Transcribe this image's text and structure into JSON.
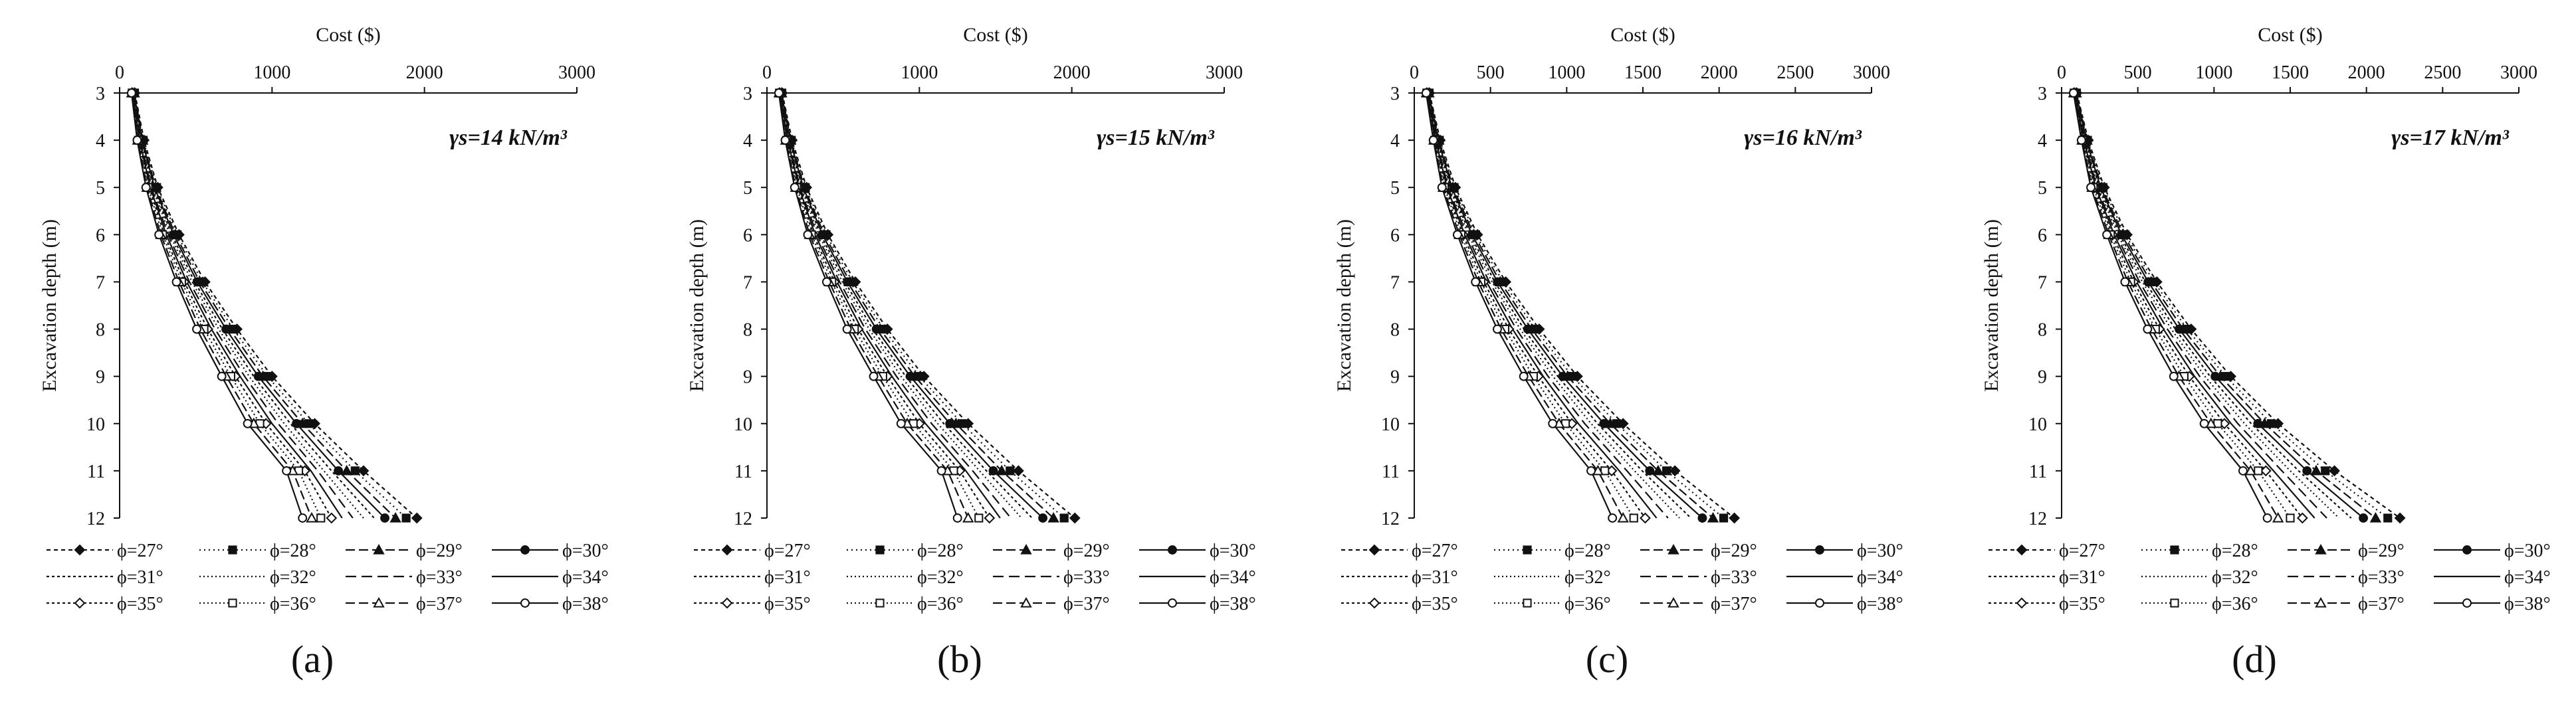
{
  "colors": {
    "ink": "#111111",
    "grid": "#999999",
    "background": "#ffffff"
  },
  "shared": {
    "x_axis_label": "Cost ($)",
    "y_axis_label": "Excavation depth (m)",
    "unit_weight_prefix": "γs="
  },
  "legend_items": [
    {
      "label": "ϕ=27°",
      "dash": "6,5",
      "marker": "diamond-filled"
    },
    {
      "label": "ϕ=28°",
      "dash": "2,5",
      "marker": "square-filled"
    },
    {
      "label": "ϕ=29°",
      "dash": "14,6",
      "marker": "triangle-filled"
    },
    {
      "label": "ϕ=30°",
      "dash": "none",
      "marker": "circle-filled"
    },
    {
      "label": "ϕ=31°",
      "dash": "4,4",
      "marker": "none"
    },
    {
      "label": "ϕ=32°",
      "dash": "2,4",
      "marker": "none"
    },
    {
      "label": "ϕ=33°",
      "dash": "16,8",
      "marker": "none"
    },
    {
      "label": "ϕ=34°",
      "dash": "none",
      "marker": "none"
    },
    {
      "label": "ϕ=35°",
      "dash": "4,4",
      "marker": "diamond-open"
    },
    {
      "label": "ϕ=36°",
      "dash": "2,4",
      "marker": "square-open"
    },
    {
      "label": "ϕ=37°",
      "dash": "14,6",
      "marker": "triangle-open"
    },
    {
      "label": "ϕ=38°",
      "dash": "none",
      "marker": "circle-open"
    }
  ],
  "chart_data": [
    {
      "type": "line",
      "panel_label": "(a)",
      "annotation": "γs=14 kN/m³",
      "xlabel": "Cost ($)",
      "ylabel": "Excavation depth (m)",
      "x_ticks": [
        0,
        1000,
        2000,
        3000
      ],
      "xlim": [
        0,
        3000
      ],
      "ylim": [
        3,
        12
      ],
      "y_ticks": [
        3,
        4,
        5,
        6,
        7,
        8,
        9,
        10,
        11,
        12
      ],
      "y_reversed": true,
      "depths": [
        3,
        4,
        5,
        6,
        7,
        8,
        9,
        10,
        11,
        12
      ],
      "series": [
        {
          "name": "ϕ=27°",
          "values": [
            100,
            160,
            250,
            390,
            560,
            770,
            1000,
            1280,
            1600,
            1950
          ]
        },
        {
          "name": "ϕ=28°",
          "values": [
            98,
            155,
            243,
            378,
            543,
            746,
            970,
            1240,
            1545,
            1880
          ]
        },
        {
          "name": "ϕ=29°",
          "values": [
            96,
            151,
            236,
            366,
            526,
            722,
            940,
            1200,
            1490,
            1810
          ]
        },
        {
          "name": "ϕ=30°",
          "values": [
            94,
            147,
            229,
            354,
            509,
            698,
            910,
            1160,
            1435,
            1740
          ]
        },
        {
          "name": "ϕ=31°",
          "values": [
            92,
            143,
            222,
            342,
            492,
            674,
            880,
            1120,
            1390,
            1670
          ]
        },
        {
          "name": "ϕ=32°",
          "values": [
            90,
            139,
            215,
            330,
            475,
            650,
            850,
            1080,
            1340,
            1600
          ]
        },
        {
          "name": "ϕ=33°",
          "values": [
            88,
            135,
            208,
            318,
            458,
            626,
            820,
            1040,
            1300,
            1530
          ]
        },
        {
          "name": "ϕ=34°",
          "values": [
            86,
            131,
            201,
            306,
            441,
            602,
            790,
            1000,
            1255,
            1460
          ]
        },
        {
          "name": "ϕ=35°",
          "values": [
            84,
            127,
            194,
            294,
            424,
            578,
            760,
            960,
            1215,
            1390
          ]
        },
        {
          "name": "ϕ=36°",
          "values": [
            82,
            123,
            187,
            282,
            407,
            554,
            730,
            920,
            1175,
            1320
          ]
        },
        {
          "name": "ϕ=37°",
          "values": [
            80,
            119,
            180,
            270,
            390,
            530,
            700,
            880,
            1135,
            1260
          ]
        },
        {
          "name": "ϕ=38°",
          "values": [
            78,
            115,
            173,
            258,
            373,
            506,
            670,
            840,
            1095,
            1200
          ]
        }
      ]
    },
    {
      "type": "line",
      "panel_label": "(b)",
      "annotation": "γs=15 kN/m³",
      "xlabel": "Cost ($)",
      "ylabel": "Excavation depth (m)",
      "x_ticks": [
        0,
        1000,
        2000,
        3000
      ],
      "xlim": [
        0,
        3000
      ],
      "ylim": [
        3,
        12
      ],
      "y_ticks": [
        3,
        4,
        5,
        6,
        7,
        8,
        9,
        10,
        11,
        12
      ],
      "y_reversed": true,
      "depths": [
        3,
        4,
        5,
        6,
        7,
        8,
        9,
        10,
        11,
        12
      ],
      "series": [
        {
          "name": "ϕ=27°",
          "values": [
            100,
            165,
            260,
            400,
            580,
            790,
            1030,
            1320,
            1650,
            2020
          ]
        },
        {
          "name": "ϕ=28°",
          "values": [
            98,
            160,
            252,
            388,
            562,
            766,
            1000,
            1280,
            1595,
            1950
          ]
        },
        {
          "name": "ϕ=29°",
          "values": [
            96,
            156,
            245,
            376,
            545,
            742,
            970,
            1240,
            1540,
            1880
          ]
        },
        {
          "name": "ϕ=30°",
          "values": [
            94,
            152,
            238,
            364,
            528,
            718,
            940,
            1200,
            1485,
            1810
          ]
        },
        {
          "name": "ϕ=31°",
          "values": [
            92,
            148,
            231,
            352,
            511,
            694,
            910,
            1160,
            1440,
            1740
          ]
        },
        {
          "name": "ϕ=32°",
          "values": [
            90,
            144,
            224,
            340,
            494,
            670,
            880,
            1120,
            1395,
            1670
          ]
        },
        {
          "name": "ϕ=33°",
          "values": [
            88,
            140,
            217,
            328,
            477,
            646,
            850,
            1080,
            1350,
            1600
          ]
        },
        {
          "name": "ϕ=34°",
          "values": [
            86,
            136,
            210,
            316,
            460,
            622,
            820,
            1040,
            1305,
            1530
          ]
        },
        {
          "name": "ϕ=35°",
          "values": [
            84,
            132,
            203,
            304,
            443,
            598,
            790,
            1000,
            1265,
            1460
          ]
        },
        {
          "name": "ϕ=36°",
          "values": [
            82,
            128,
            196,
            292,
            426,
            574,
            760,
            960,
            1225,
            1390
          ]
        },
        {
          "name": "ϕ=37°",
          "values": [
            80,
            124,
            189,
            280,
            409,
            550,
            730,
            920,
            1185,
            1320
          ]
        },
        {
          "name": "ϕ=38°",
          "values": [
            78,
            120,
            182,
            268,
            392,
            526,
            700,
            880,
            1145,
            1250
          ]
        }
      ]
    },
    {
      "type": "line",
      "panel_label": "(c)",
      "annotation": "γs=16 kN/m³",
      "xlabel": "Cost ($)",
      "ylabel": "Excavation depth (m)",
      "x_ticks": [
        0,
        500,
        1000,
        1500,
        2000,
        2500,
        3000
      ],
      "xlim": [
        0,
        3000
      ],
      "ylim": [
        3,
        12
      ],
      "y_ticks": [
        3,
        4,
        5,
        6,
        7,
        8,
        9,
        10,
        11,
        12
      ],
      "y_reversed": true,
      "depths": [
        3,
        4,
        5,
        6,
        7,
        8,
        9,
        10,
        11,
        12
      ],
      "series": [
        {
          "name": "ϕ=27°",
          "values": [
            100,
            170,
            270,
            415,
            600,
            820,
            1070,
            1370,
            1710,
            2100
          ]
        },
        {
          "name": "ϕ=28°",
          "values": [
            98,
            165,
            262,
            403,
            582,
            795,
            1038,
            1328,
            1655,
            2030
          ]
        },
        {
          "name": "ϕ=29°",
          "values": [
            96,
            161,
            254,
            391,
            564,
            770,
            1006,
            1286,
            1600,
            1960
          ]
        },
        {
          "name": "ϕ=30°",
          "values": [
            94,
            157,
            246,
            379,
            546,
            745,
            974,
            1244,
            1545,
            1890
          ]
        },
        {
          "name": "ϕ=31°",
          "values": [
            92,
            153,
            238,
            367,
            528,
            720,
            942,
            1202,
            1495,
            1815
          ]
        },
        {
          "name": "ϕ=32°",
          "values": [
            90,
            149,
            230,
            355,
            510,
            695,
            910,
            1160,
            1445,
            1740
          ]
        },
        {
          "name": "ϕ=33°",
          "values": [
            88,
            145,
            222,
            343,
            492,
            670,
            878,
            1118,
            1395,
            1665
          ]
        },
        {
          "name": "ϕ=34°",
          "values": [
            86,
            141,
            214,
            331,
            474,
            645,
            846,
            1076,
            1345,
            1590
          ]
        },
        {
          "name": "ϕ=35°",
          "values": [
            84,
            137,
            206,
            319,
            456,
            620,
            814,
            1034,
            1295,
            1515
          ]
        },
        {
          "name": "ϕ=36°",
          "values": [
            82,
            133,
            198,
            307,
            438,
            595,
            782,
            992,
            1250,
            1440
          ]
        },
        {
          "name": "ϕ=37°",
          "values": [
            80,
            129,
            190,
            295,
            420,
            570,
            750,
            950,
            1205,
            1370
          ]
        },
        {
          "name": "ϕ=38°",
          "values": [
            78,
            125,
            182,
            283,
            402,
            545,
            718,
            908,
            1160,
            1300
          ]
        }
      ]
    },
    {
      "type": "line",
      "panel_label": "(d)",
      "annotation": "γs=17 kN/m³",
      "xlabel": "Cost ($)",
      "ylabel": "Excavation depth (m)",
      "x_ticks": [
        0,
        500,
        1000,
        1500,
        2000,
        2500,
        3000
      ],
      "xlim": [
        0,
        3000
      ],
      "ylim": [
        3,
        12
      ],
      "y_ticks": [
        3,
        4,
        5,
        6,
        7,
        8,
        9,
        10,
        11,
        12
      ],
      "y_reversed": true,
      "depths": [
        3,
        4,
        5,
        6,
        7,
        8,
        9,
        10,
        11,
        12
      ],
      "series": [
        {
          "name": "ϕ=27°",
          "values": [
            100,
            175,
            280,
            430,
            625,
            850,
            1110,
            1420,
            1790,
            2220
          ]
        },
        {
          "name": "ϕ=28°",
          "values": [
            98,
            170,
            272,
            417,
            606,
            824,
            1076,
            1376,
            1730,
            2140
          ]
        },
        {
          "name": "ϕ=29°",
          "values": [
            96,
            166,
            264,
            405,
            587,
            798,
            1042,
            1332,
            1670,
            2060
          ]
        },
        {
          "name": "ϕ=30°",
          "values": [
            94,
            162,
            256,
            393,
            568,
            772,
            1008,
            1288,
            1610,
            1980
          ]
        },
        {
          "name": "ϕ=31°",
          "values": [
            92,
            158,
            248,
            381,
            549,
            746,
            974,
            1244,
            1555,
            1900
          ]
        },
        {
          "name": "ϕ=32°",
          "values": [
            90,
            154,
            240,
            369,
            530,
            720,
            940,
            1200,
            1500,
            1820
          ]
        },
        {
          "name": "ϕ=33°",
          "values": [
            88,
            150,
            232,
            357,
            511,
            694,
            906,
            1156,
            1445,
            1740
          ]
        },
        {
          "name": "ϕ=34°",
          "values": [
            86,
            146,
            224,
            345,
            492,
            668,
            872,
            1112,
            1390,
            1660
          ]
        },
        {
          "name": "ϕ=35°",
          "values": [
            84,
            142,
            216,
            333,
            473,
            642,
            838,
            1068,
            1340,
            1580
          ]
        },
        {
          "name": "ϕ=36°",
          "values": [
            82,
            138,
            208,
            321,
            454,
            616,
            804,
            1024,
            1290,
            1500
          ]
        },
        {
          "name": "ϕ=37°",
          "values": [
            80,
            134,
            200,
            309,
            435,
            590,
            770,
            980,
            1240,
            1420
          ]
        },
        {
          "name": "ϕ=38°",
          "values": [
            78,
            130,
            192,
            297,
            416,
            564,
            736,
            936,
            1190,
            1350
          ]
        }
      ]
    }
  ]
}
